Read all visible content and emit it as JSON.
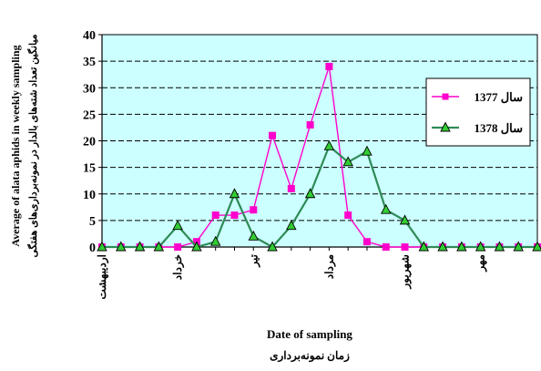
{
  "chart_data": {
    "type": "line",
    "title": "",
    "xlabel": "Date of sampling",
    "xlabel_fa": "زمان نمونه‌برداری",
    "ylabel": "Average of alata aphids in weekly sampling",
    "ylabel_fa": "میانگین تعداد شته‌های بالدار در نمونه‌برداری‌های هفتگی",
    "ylim": [
      0,
      40
    ],
    "yticks": [
      0,
      5,
      10,
      15,
      20,
      25,
      30,
      35,
      40
    ],
    "grid": "horizontal dashed",
    "legend_position": "right",
    "plot_background": "#ccffff",
    "month_labels": [
      "اردیبهشت",
      "خرداد",
      "تیر",
      "مرداد",
      "شهریور",
      "مهر"
    ],
    "month_positions": [
      0,
      4,
      8,
      12,
      16,
      20
    ],
    "x_count": 24,
    "series": [
      {
        "name": "سال 1377",
        "color": "#ff00cc",
        "marker": "square",
        "values": [
          0,
          0,
          0,
          0,
          0,
          1,
          6,
          6,
          7,
          21,
          11,
          23,
          34,
          6,
          1,
          0,
          0,
          0,
          0,
          0,
          0,
          0,
          0,
          0
        ]
      },
      {
        "name": "سال 1378",
        "color": "#2e8b57",
        "marker": "triangle",
        "values": [
          0,
          0,
          0,
          0,
          4,
          0,
          1,
          10,
          2,
          0,
          4,
          10,
          19,
          16,
          18,
          7,
          5,
          0,
          0,
          0,
          0,
          0,
          0,
          0
        ]
      }
    ]
  }
}
